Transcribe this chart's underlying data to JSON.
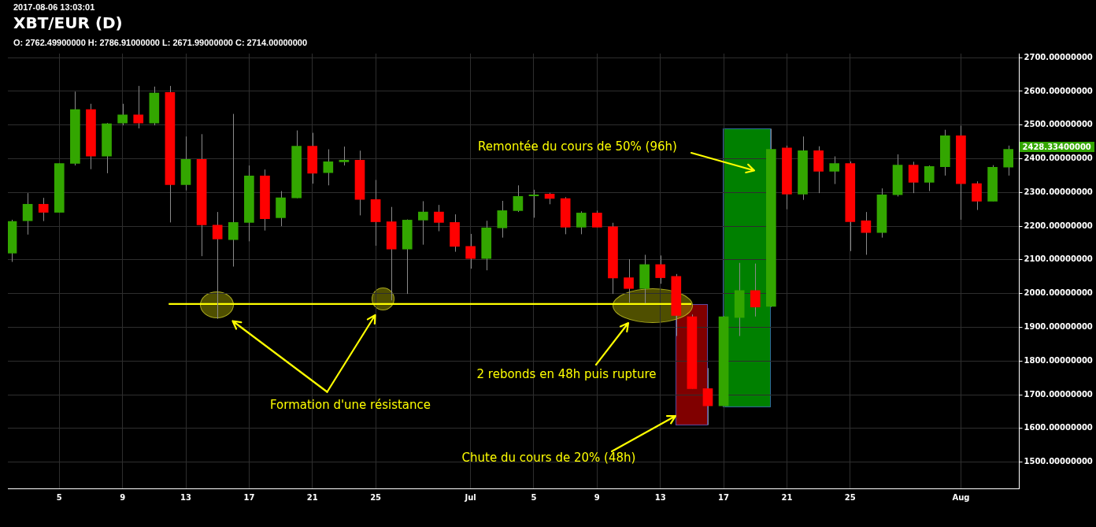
{
  "chart_data": {
    "type": "candlestick",
    "title": "XBT/EUR (D)",
    "subtitle": "O: 2762.49900000 H: 2786.91000000 L: 2671.99000000 C: 2714.00000000",
    "x": [
      "2017-06-02",
      "2017-06-03",
      "2017-06-04",
      "2017-06-05",
      "2017-06-06",
      "2017-06-07",
      "2017-06-08",
      "2017-06-09",
      "2017-06-10",
      "2017-06-11",
      "2017-06-12",
      "2017-06-13",
      "2017-06-14",
      "2017-06-15",
      "2017-06-16",
      "2017-06-17",
      "2017-06-18",
      "2017-06-19",
      "2017-06-20",
      "2017-06-21",
      "2017-06-22",
      "2017-06-23",
      "2017-06-24",
      "2017-06-25",
      "2017-06-26",
      "2017-06-27",
      "2017-06-28",
      "2017-06-29",
      "2017-06-30",
      "2017-07-01",
      "2017-07-02",
      "2017-07-03",
      "2017-07-04",
      "2017-07-05",
      "2017-07-06",
      "2017-07-07",
      "2017-07-08",
      "2017-07-09",
      "2017-07-10",
      "2017-07-11",
      "2017-07-12",
      "2017-07-13",
      "2017-07-14",
      "2017-07-15",
      "2017-07-16",
      "2017-07-17",
      "2017-07-18",
      "2017-07-19",
      "2017-07-20",
      "2017-07-21",
      "2017-07-22",
      "2017-07-23",
      "2017-07-24",
      "2017-07-25",
      "2017-07-26",
      "2017-07-27",
      "2017-07-28",
      "2017-07-29",
      "2017-07-30",
      "2017-07-31",
      "2017-08-01",
      "2017-08-02",
      "2017-08-03",
      "2017-08-04"
    ],
    "ohlc": [
      [
        2120,
        2219,
        2094,
        2214
      ],
      [
        2216,
        2298,
        2175,
        2265
      ],
      [
        2265,
        2284,
        2215,
        2241
      ],
      [
        2241,
        2386,
        2241,
        2386
      ],
      [
        2386,
        2599,
        2380,
        2546
      ],
      [
        2546,
        2563,
        2369,
        2408
      ],
      [
        2408,
        2506,
        2357,
        2504
      ],
      [
        2506,
        2563,
        2499,
        2530
      ],
      [
        2530,
        2616,
        2490,
        2506
      ],
      [
        2506,
        2614,
        2499,
        2595
      ],
      [
        2597,
        2616,
        2211,
        2323
      ],
      [
        2323,
        2466,
        2306,
        2398
      ],
      [
        2398,
        2473,
        2111,
        2204
      ],
      [
        2203,
        2242,
        1925,
        2162
      ],
      [
        2160,
        2533,
        2080,
        2211
      ],
      [
        2211,
        2380,
        2155,
        2349
      ],
      [
        2349,
        2368,
        2187,
        2222
      ],
      [
        2225,
        2304,
        2200,
        2284
      ],
      [
        2284,
        2484,
        2283,
        2437
      ],
      [
        2437,
        2477,
        2326,
        2357
      ],
      [
        2359,
        2428,
        2321,
        2391
      ],
      [
        2391,
        2436,
        2380,
        2396
      ],
      [
        2396,
        2424,
        2232,
        2279
      ],
      [
        2279,
        2337,
        2142,
        2213
      ],
      [
        2213,
        2257,
        1980,
        2132
      ],
      [
        2132,
        2220,
        1999,
        2218
      ],
      [
        2218,
        2274,
        2145,
        2242
      ],
      [
        2242,
        2263,
        2185,
        2211
      ],
      [
        2211,
        2235,
        2124,
        2140
      ],
      [
        2140,
        2177,
        2074,
        2104
      ],
      [
        2104,
        2216,
        2069,
        2195
      ],
      [
        2195,
        2275,
        2166,
        2246
      ],
      [
        2246,
        2321,
        2242,
        2288
      ],
      [
        2290,
        2308,
        2225,
        2293
      ],
      [
        2295,
        2299,
        2265,
        2282
      ],
      [
        2282,
        2286,
        2176,
        2197
      ],
      [
        2197,
        2244,
        2176,
        2239
      ],
      [
        2239,
        2246,
        2197,
        2197
      ],
      [
        2198,
        2210,
        1999,
        2046
      ],
      [
        2047,
        2102,
        1973,
        2015
      ],
      [
        2015,
        2115,
        1971,
        2086
      ],
      [
        2086,
        2113,
        2029,
        2047
      ],
      [
        2051,
        2058,
        1874,
        1935
      ],
      [
        1931,
        1938,
        1718,
        1718
      ],
      [
        1718,
        1779,
        1610,
        1667
      ],
      [
        1667,
        1933,
        1667,
        1931
      ],
      [
        1929,
        2091,
        1874,
        2009
      ],
      [
        2009,
        2089,
        1932,
        1960
      ],
      [
        1962,
        2489,
        1960,
        2428
      ],
      [
        2432,
        2439,
        2250,
        2295
      ],
      [
        2295,
        2466,
        2278,
        2424
      ],
      [
        2424,
        2437,
        2298,
        2363
      ],
      [
        2363,
        2407,
        2325,
        2386
      ],
      [
        2386,
        2392,
        2126,
        2213
      ],
      [
        2216,
        2242,
        2115,
        2181
      ],
      [
        2181,
        2312,
        2166,
        2293
      ],
      [
        2293,
        2413,
        2288,
        2381
      ],
      [
        2381,
        2391,
        2298,
        2330
      ],
      [
        2330,
        2380,
        2304,
        2377
      ],
      [
        2376,
        2486,
        2350,
        2468
      ],
      [
        2468,
        2498,
        2219,
        2326
      ],
      [
        2326,
        2333,
        2248,
        2274
      ],
      [
        2274,
        2381,
        2274,
        2375
      ],
      [
        2375,
        2439,
        2350,
        2428
      ]
    ],
    "colors": [
      "#33a600",
      "#33a600",
      "#ff0000",
      "#33a600",
      "#33a600",
      "#ff0000",
      "#33a600",
      "#33a600",
      "#ff0000",
      "#33a600",
      "#ff0000",
      "#33a600",
      "#ff0000",
      "#ff0000",
      "#33a600",
      "#33a600",
      "#ff0000",
      "#33a600",
      "#33a600",
      "#ff0000",
      "#33a600",
      "#33a600",
      "#ff0000",
      "#ff0000",
      "#ff0000",
      "#33a600",
      "#33a600",
      "#ff0000",
      "#ff0000",
      "#ff0000",
      "#33a600",
      "#33a600",
      "#33a600",
      "#33a600",
      "#ff0000",
      "#ff0000",
      "#33a600",
      "#ff0000",
      "#ff0000",
      "#ff0000",
      "#33a600",
      "#ff0000",
      "#ff0000",
      "#ff0000",
      "#ff0000",
      "#33a600",
      "#33a600",
      "#ff0000",
      "#33a600",
      "#ff0000",
      "#33a600",
      "#ff0000",
      "#33a600",
      "#ff0000",
      "#ff0000",
      "#33a600",
      "#33a600",
      "#ff0000",
      "#33a600",
      "#33a600",
      "#ff0000",
      "#ff0000",
      "#33a600",
      "#33a600"
    ],
    "series": [
      {
        "type": "line",
        "x": [
          "2017-06-11T22:00",
          "2017-07-14T23:00"
        ],
        "values": [
          1969,
          1969
        ],
        "color": "#ffff00"
      }
    ],
    "xlim": [
      "2017-06-01T18:00",
      "2017-08-04T16:30"
    ],
    "xticks": [
      {
        "value": "2017-06-05",
        "label": "5"
      },
      {
        "value": "2017-06-09",
        "label": "9"
      },
      {
        "value": "2017-06-13",
        "label": "13"
      },
      {
        "value": "2017-06-17",
        "label": "17"
      },
      {
        "value": "2017-06-21",
        "label": "21"
      },
      {
        "value": "2017-06-25",
        "label": "25"
      },
      {
        "value": "2017-07-01",
        "label": "Jul"
      },
      {
        "value": "2017-07-05",
        "label": "5"
      },
      {
        "value": "2017-07-09",
        "label": "9"
      },
      {
        "value": "2017-07-13",
        "label": "13"
      },
      {
        "value": "2017-07-17",
        "label": "17"
      },
      {
        "value": "2017-07-21",
        "label": "21"
      },
      {
        "value": "2017-07-25",
        "label": "25"
      },
      {
        "value": "2017-08-01",
        "label": "Aug"
      }
    ],
    "ylim": [
      1422,
      2712
    ],
    "yticks": [
      {
        "value": 1500,
        "label": "1500.00000000"
      },
      {
        "value": 1600,
        "label": "1600.00000000"
      },
      {
        "value": 1700,
        "label": "1700.00000000"
      },
      {
        "value": 1800,
        "label": "1800.00000000"
      },
      {
        "value": 1900,
        "label": "1900.00000000"
      },
      {
        "value": 2000,
        "label": "2000.00000000"
      },
      {
        "value": 2100,
        "label": "2100.00000000"
      },
      {
        "value": 2200,
        "label": "2200.00000000"
      },
      {
        "value": 2300,
        "label": "2300.00000000"
      },
      {
        "value": 2400,
        "label": "2400.00000000"
      },
      {
        "value": 2500,
        "label": "2500.00000000"
      },
      {
        "value": 2600,
        "label": "2600.00000000"
      },
      {
        "value": 2700,
        "label": "2700.00000000"
      }
    ],
    "grid": true,
    "annotations": [
      "2017-08-06 13:03:01",
      "Remontée du cours de 50% (96h)",
      "2 rebonds en 48h puis rupture",
      "Formation d'une résistance",
      "Chute du cours de 20% (48h)",
      "2428.33400000"
    ]
  }
}
